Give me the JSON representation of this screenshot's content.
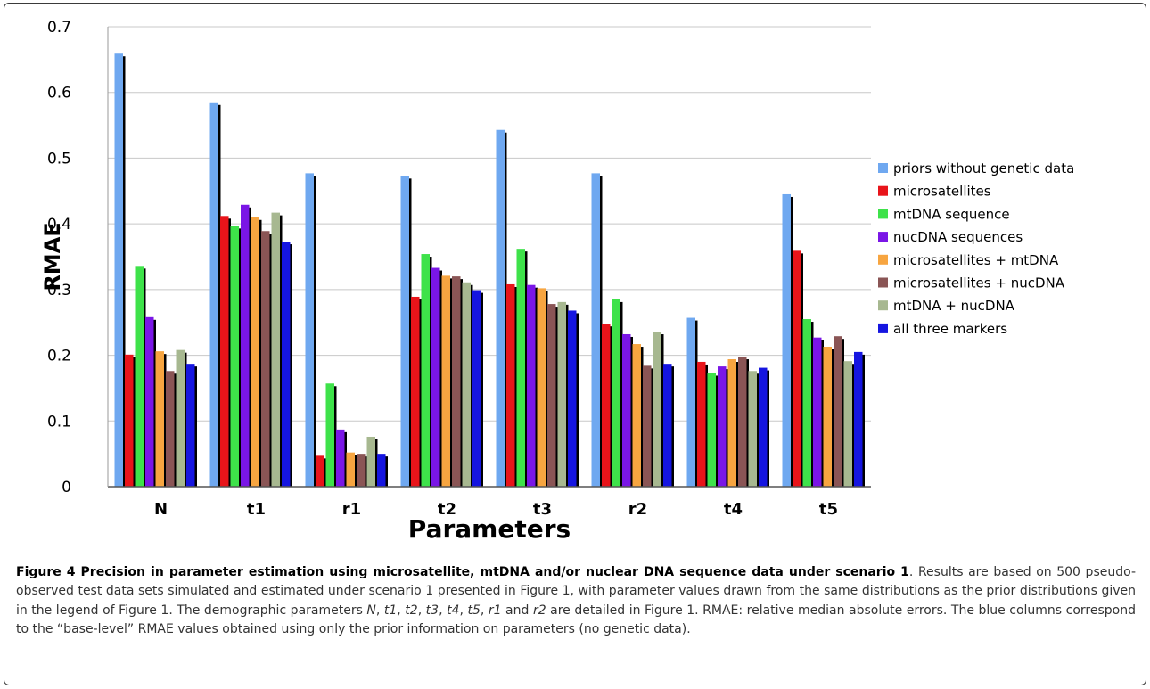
{
  "chart_data": {
    "type": "bar",
    "title": "",
    "xlabel": "Parameters",
    "ylabel": "RMAE",
    "ylim": [
      0,
      0.7
    ],
    "yticks": [
      "0",
      "0.1",
      "0.2",
      "0.3",
      "0.4",
      "0.5",
      "0.6",
      "0.7"
    ],
    "grid": true,
    "legend_position": "right",
    "categories": [
      "N",
      "t1",
      "r1",
      "t2",
      "t3",
      "r2",
      "t4",
      "t5"
    ],
    "series": [
      {
        "name": "priors without genetic data",
        "color": "#6fa8f0",
        "values": [
          0.659,
          0.585,
          0.477,
          0.473,
          0.543,
          0.477,
          0.257,
          0.445
        ]
      },
      {
        "name": "microsatellites",
        "color": "#e8141a",
        "values": [
          0.201,
          0.412,
          0.047,
          0.289,
          0.308,
          0.248,
          0.19,
          0.359
        ]
      },
      {
        "name": "mtDNA sequence",
        "color": "#3ee24a",
        "values": [
          0.336,
          0.397,
          0.157,
          0.354,
          0.362,
          0.285,
          0.173,
          0.255
        ]
      },
      {
        "name": "nucDNA sequences",
        "color": "#7a16e6",
        "values": [
          0.258,
          0.429,
          0.087,
          0.333,
          0.307,
          0.232,
          0.183,
          0.227
        ]
      },
      {
        "name": "microsatellites + mtDNA",
        "color": "#f7a540",
        "values": [
          0.206,
          0.41,
          0.052,
          0.321,
          0.302,
          0.217,
          0.194,
          0.213
        ]
      },
      {
        "name": "microsatellites + nucDNA",
        "color": "#8a5555",
        "values": [
          0.176,
          0.389,
          0.05,
          0.32,
          0.278,
          0.184,
          0.198,
          0.229
        ]
      },
      {
        "name": "mtDNA + nucDNA",
        "color": "#a7b890",
        "values": [
          0.208,
          0.417,
          0.076,
          0.311,
          0.281,
          0.236,
          0.176,
          0.191
        ]
      },
      {
        "name": "all three markers",
        "color": "#1515e0",
        "values": [
          0.187,
          0.373,
          0.05,
          0.299,
          0.268,
          0.187,
          0.181,
          0.205
        ]
      }
    ]
  },
  "caption": {
    "bold": "Figure 4 Precision in parameter estimation using microsatellite, mtDNA and/or nuclear DNA sequence data under scenario 1",
    "s1": ". Results are based on 500 pseudo-observed test data sets simulated and estimated under scenario 1 presented in Figure 1, with parameter values drawn from the same distributions as the prior distributions given in the legend of Figure 1. The demographic parameters ",
    "p_N": "N",
    "c1": ", ",
    "p_t1": "t1",
    "c2": ", ",
    "p_t2": "t2",
    "c3": ", ",
    "p_t3": "t3",
    "c4": ", ",
    "p_t4": "t4",
    "c5": ", ",
    "p_t5": "t5",
    "c6": ", ",
    "p_r1": "r1",
    "and": " and ",
    "p_r2": "r2",
    "s2": " are detailed in Figure 1. RMAE: relative median absolute errors. The blue columns correspond to the “base-level” RMAE values obtained using only the prior information on parameters (no genetic data)."
  }
}
